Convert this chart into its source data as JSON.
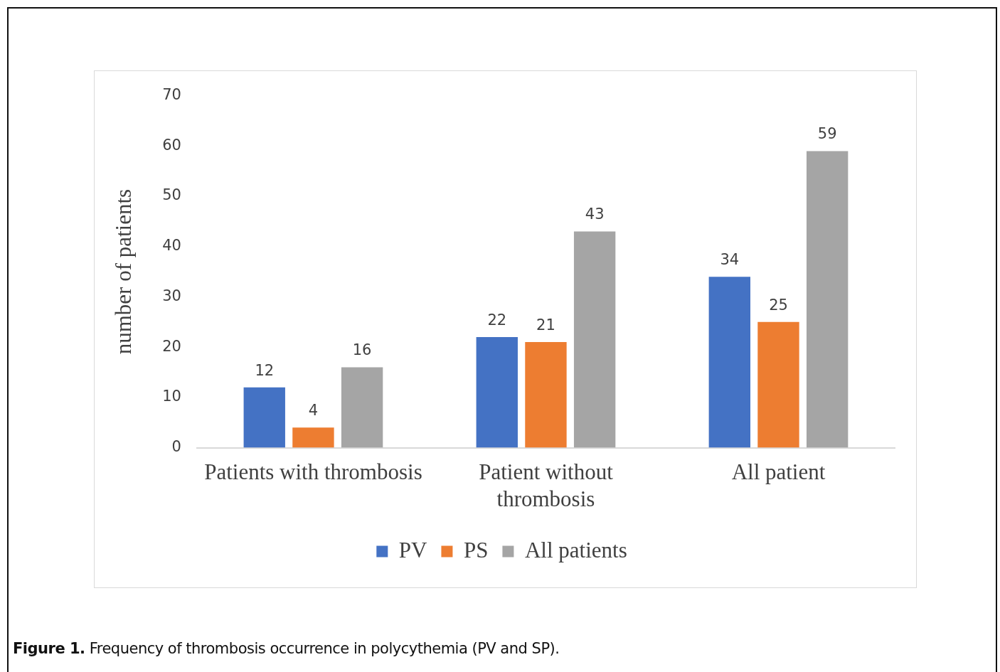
{
  "chart_data": {
    "type": "bar",
    "ylabel": "number of patients",
    "categories": [
      "Patients with thrombosis",
      "Patient without thrombosis",
      "All patient"
    ],
    "series": [
      {
        "name": "PV",
        "color": "#4472c4",
        "values": [
          12,
          22,
          34
        ]
      },
      {
        "name": "PS",
        "color": "#ed7d31",
        "values": [
          4,
          21,
          25
        ]
      },
      {
        "name": "All patients",
        "color": "#a5a5a5",
        "values": [
          16,
          43,
          59
        ]
      }
    ],
    "ylim": [
      0,
      70
    ],
    "yticks": [
      0,
      10,
      20,
      30,
      40,
      50,
      60,
      70
    ],
    "grid": false,
    "legend": "bottom",
    "data_labels": true,
    "annotations": [
      "Figure 1. Frequency of thrombosis occurrence in polycythemia (PV and SP)."
    ]
  }
}
